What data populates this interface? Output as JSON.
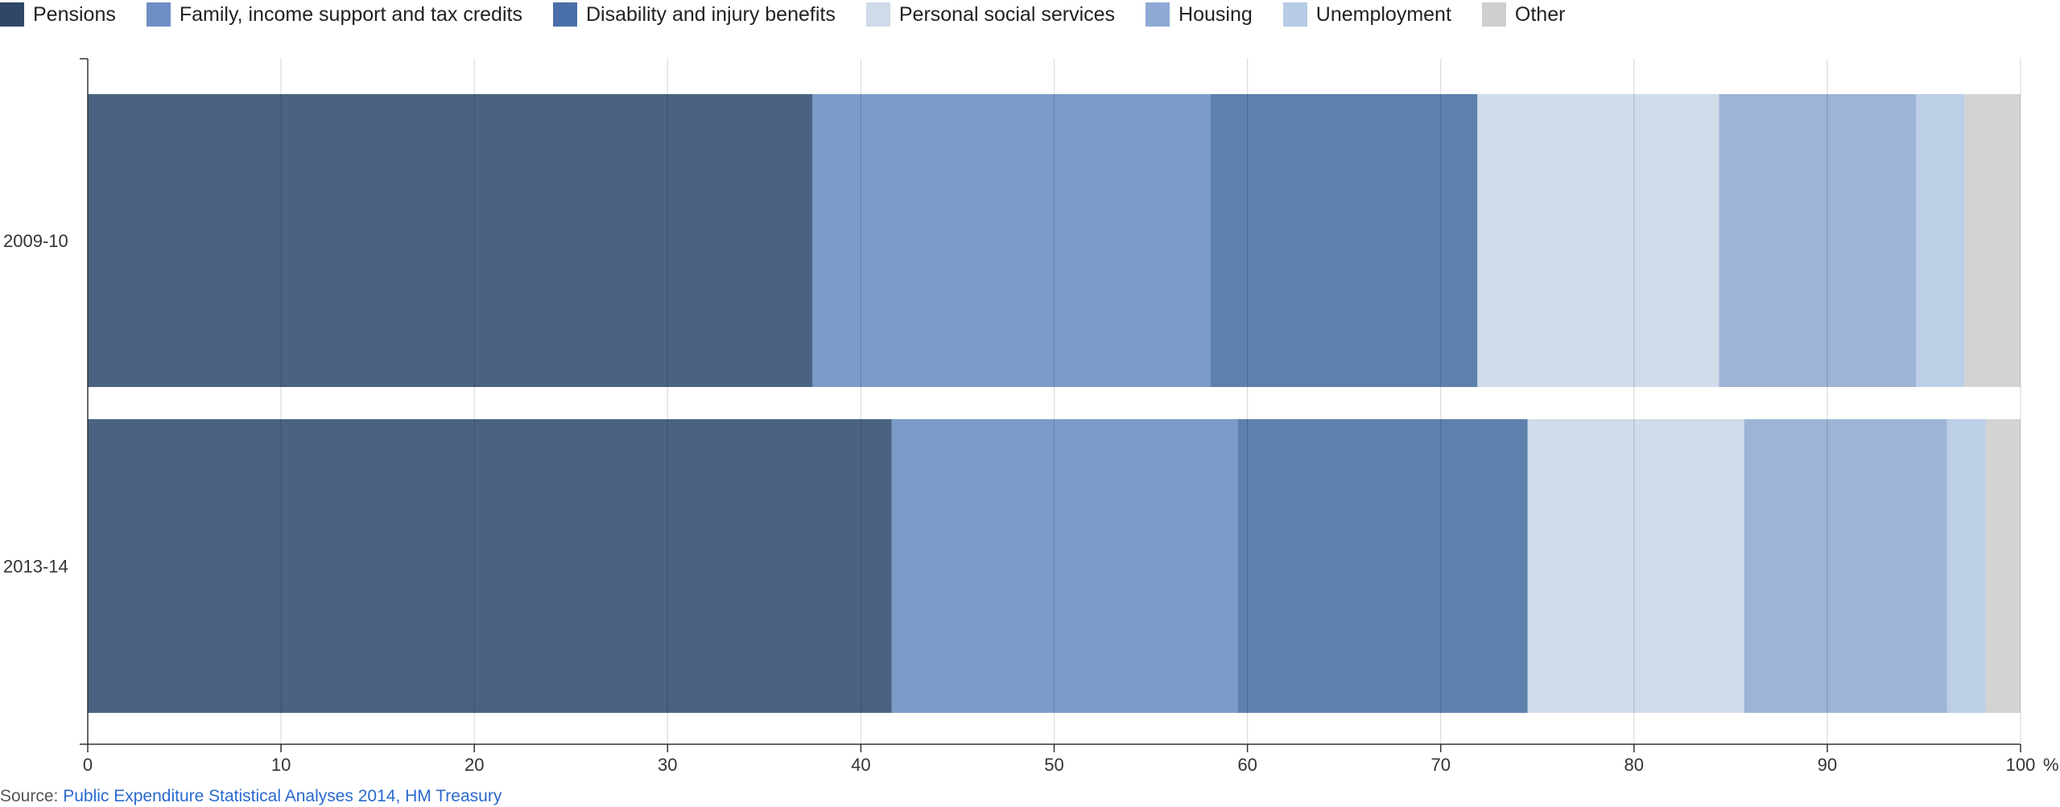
{
  "chart_data": {
    "type": "bar",
    "orientation": "horizontal",
    "stacked": true,
    "title": "",
    "xlabel": "",
    "ylabel": "",
    "x_unit": "%",
    "xlim": [
      0,
      100
    ],
    "x_ticks": [
      0,
      10,
      20,
      30,
      40,
      50,
      60,
      70,
      80,
      90,
      100
    ],
    "grid": true,
    "legend_position": "top-left",
    "categories": [
      "2009-10",
      "2013-14"
    ],
    "series": [
      {
        "name": "Pensions",
        "color": "#4a6382",
        "values": [
          37.5,
          41.6
        ]
      },
      {
        "name": "Family, income support and tax credits",
        "color": "#7b9cc8",
        "values": [
          20.6,
          17.9
        ]
      },
      {
        "name": "Disability and injury benefits",
        "color": "#5e80ad",
        "values": [
          13.8,
          15.0
        ]
      },
      {
        "name": "Personal social services",
        "color": "#d0dcea",
        "values": [
          12.5,
          11.2
        ]
      },
      {
        "name": "Housing",
        "color": "#9db4d6",
        "values": [
          10.2,
          10.5
        ]
      },
      {
        "name": "Unemployment",
        "color": "#bdcfe7",
        "values": [
          2.5,
          2.0
        ]
      },
      {
        "name": "Other",
        "color": "#d3d3d3",
        "values": [
          2.9,
          1.8
        ]
      }
    ]
  },
  "legend": [
    {
      "label": "Pensions",
      "color": "#2f4868"
    },
    {
      "label": "Family, income support and tax credits",
      "color": "#6d8fc4"
    },
    {
      "label": "Disability and injury benefits",
      "color": "#4a6fa8"
    },
    {
      "label": "Personal social services",
      "color": "#cfdaea"
    },
    {
      "label": "Housing",
      "color": "#8eaad3"
    },
    {
      "label": "Unemployment",
      "color": "#b7cbe6"
    },
    {
      "label": "Other",
      "color": "#cfcfcf"
    }
  ],
  "source": {
    "prefix": "Source: ",
    "link_text": "Public Expenditure Statistical Analyses 2014, HM Treasury"
  }
}
